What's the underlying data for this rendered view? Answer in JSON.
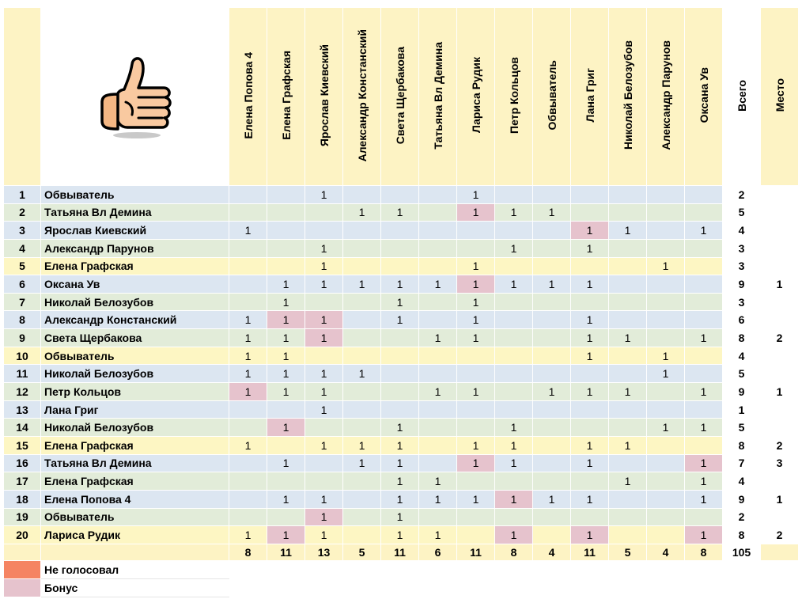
{
  "columns": [
    "Елена Попова 4",
    "Елена Графская",
    "Ярослав Киевский",
    "Александр Констанский",
    "Света Щербакова",
    "Татьяна Вл Демина",
    "Лариса Рудик",
    "Петр Кольцов",
    "Обвыватель",
    "Лана Григ",
    "Николай Белозубов",
    "Александр Парунов",
    "Оксана Ув"
  ],
  "total_header": "Всего",
  "place_header": "Место",
  "logo_icon": "thumbs-up-icon",
  "colors": {
    "blue": "#dce6f1",
    "green": "#e2ecd9",
    "yellow": "#fdf6c3",
    "header": "#fdf3c4",
    "bonus": "#e6c3cd",
    "not_voted": "#f58462"
  },
  "rows": [
    {
      "n": "1",
      "name": "Обвыватель",
      "color": "blue",
      "cells": [
        "",
        "",
        "1",
        "",
        "",
        "",
        "1",
        "",
        "",
        "",
        "",
        "",
        ""
      ],
      "bonus": [],
      "total": "2",
      "place": ""
    },
    {
      "n": "2",
      "name": "Татьяна Вл Демина",
      "color": "green",
      "cells": [
        "",
        "",
        "",
        "1",
        "1",
        "",
        "1",
        "1",
        "1",
        "",
        "",
        "",
        ""
      ],
      "bonus": [
        6
      ],
      "total": "5",
      "place": ""
    },
    {
      "n": "3",
      "name": "Ярослав Киевский",
      "color": "blue",
      "cells": [
        "1",
        "",
        "",
        "",
        "",
        "",
        "",
        "",
        "",
        "1",
        "1",
        "",
        "1"
      ],
      "bonus": [
        9
      ],
      "total": "4",
      "place": ""
    },
    {
      "n": "4",
      "name": "Александр Парунов",
      "color": "green",
      "cells": [
        "",
        "",
        "1",
        "",
        "",
        "",
        "",
        "1",
        "",
        "1",
        "",
        "",
        ""
      ],
      "bonus": [],
      "total": "3",
      "place": ""
    },
    {
      "n": "5",
      "name": "Елена Графская",
      "color": "yellow",
      "cells": [
        "",
        "",
        "1",
        "",
        "",
        "",
        "1",
        "",
        "",
        "",
        "",
        "1",
        ""
      ],
      "bonus": [],
      "total": "3",
      "place": ""
    },
    {
      "n": "6",
      "name": "Оксана Ув",
      "color": "blue",
      "cells": [
        "",
        "1",
        "1",
        "1",
        "1",
        "1",
        "1",
        "1",
        "1",
        "1",
        "",
        "",
        ""
      ],
      "bonus": [
        6
      ],
      "total": "9",
      "place": "1"
    },
    {
      "n": "7",
      "name": "Николай Белозубов",
      "color": "green",
      "cells": [
        "",
        "1",
        "",
        "",
        "1",
        "",
        "1",
        "",
        "",
        "",
        "",
        "",
        ""
      ],
      "bonus": [],
      "total": "3",
      "place": ""
    },
    {
      "n": "8",
      "name": "Александр Констанский",
      "color": "blue",
      "cells": [
        "1",
        "1",
        "1",
        "",
        "1",
        "",
        "1",
        "",
        "",
        "1",
        "",
        "",
        ""
      ],
      "bonus": [
        1,
        2
      ],
      "total": "6",
      "place": ""
    },
    {
      "n": "9",
      "name": "Света Щербакова",
      "color": "green",
      "cells": [
        "1",
        "1",
        "1",
        "",
        "",
        "1",
        "1",
        "",
        "",
        "1",
        "1",
        "",
        "1"
      ],
      "bonus": [
        2
      ],
      "total": "8",
      "place": "2"
    },
    {
      "n": "10",
      "name": "Обвыватель",
      "color": "yellow",
      "cells": [
        "1",
        "1",
        "",
        "",
        "",
        "",
        "",
        "",
        "",
        "1",
        "",
        "1",
        ""
      ],
      "bonus": [],
      "total": "4",
      "place": ""
    },
    {
      "n": "11",
      "name": "Николай Белозубов",
      "color": "blue",
      "cells": [
        "1",
        "1",
        "1",
        "1",
        "",
        "",
        "",
        "",
        "",
        "",
        "",
        "1",
        ""
      ],
      "bonus": [],
      "total": "5",
      "place": ""
    },
    {
      "n": "12",
      "name": "Петр Кольцов",
      "color": "green",
      "cells": [
        "1",
        "1",
        "1",
        "",
        "",
        "1",
        "1",
        "",
        "1",
        "1",
        "1",
        "",
        "1"
      ],
      "bonus": [
        0
      ],
      "total": "9",
      "place": "1"
    },
    {
      "n": "13",
      "name": "Лана Григ",
      "color": "blue",
      "cells": [
        "",
        "",
        "1",
        "",
        "",
        "",
        "",
        "",
        "",
        "",
        "",
        "",
        ""
      ],
      "bonus": [],
      "total": "1",
      "place": ""
    },
    {
      "n": "14",
      "name": "Николай Белозубов",
      "color": "green",
      "cells": [
        "",
        "1",
        "",
        "",
        "1",
        "",
        "",
        "1",
        "",
        "",
        "",
        "1",
        "1"
      ],
      "bonus": [
        1
      ],
      "total": "5",
      "place": ""
    },
    {
      "n": "15",
      "name": "Елена Графская",
      "color": "yellow",
      "cells": [
        "1",
        "",
        "1",
        "1",
        "1",
        "",
        "1",
        "1",
        "",
        "1",
        "1",
        "",
        ""
      ],
      "bonus": [],
      "total": "8",
      "place": "2"
    },
    {
      "n": "16",
      "name": "Татьяна Вл Демина",
      "color": "blue",
      "cells": [
        "",
        "1",
        "",
        "1",
        "1",
        "",
        "1",
        "1",
        "",
        "1",
        "",
        "",
        "1"
      ],
      "bonus": [
        6,
        12
      ],
      "total": "7",
      "place": "3"
    },
    {
      "n": "17",
      "name": "Елена Графская",
      "color": "green",
      "cells": [
        "",
        "",
        "",
        "",
        "1",
        "1",
        "",
        "",
        "",
        "",
        "1",
        "",
        "1"
      ],
      "bonus": [],
      "total": "4",
      "place": ""
    },
    {
      "n": "18",
      "name": "Елена Попова 4",
      "color": "blue",
      "cells": [
        "",
        "1",
        "1",
        "",
        "1",
        "1",
        "1",
        "1",
        "1",
        "1",
        "",
        "",
        "1"
      ],
      "bonus": [
        7
      ],
      "total": "9",
      "place": "1"
    },
    {
      "n": "19",
      "name": "Обвыватель",
      "color": "green",
      "cells": [
        "",
        "",
        "1",
        "",
        "1",
        "",
        "",
        "",
        "",
        "",
        "",
        "",
        ""
      ],
      "bonus": [
        2
      ],
      "total": "2",
      "place": ""
    },
    {
      "n": "20",
      "name": "Лариса Рудик",
      "color": "yellow",
      "cells": [
        "1",
        "1",
        "1",
        "",
        "1",
        "1",
        "",
        "1",
        "",
        "1",
        "",
        "",
        "1"
      ],
      "bonus": [
        1,
        7,
        9,
        12
      ],
      "total": "8",
      "place": "2"
    }
  ],
  "column_sums": [
    "8",
    "11",
    "13",
    "5",
    "11",
    "6",
    "11",
    "8",
    "4",
    "11",
    "5",
    "4",
    "8"
  ],
  "grand_total": "105",
  "legend": [
    {
      "label": "Не голосовал",
      "swatch": "not_voted"
    },
    {
      "label": "Бонус",
      "swatch": "bonus"
    }
  ]
}
